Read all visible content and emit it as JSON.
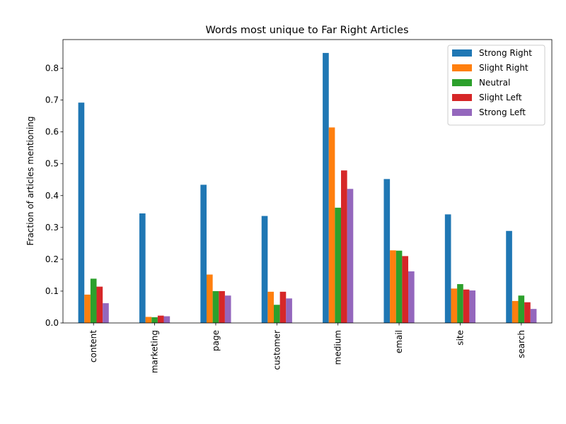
{
  "chart_data": {
    "type": "bar",
    "title": "Words most unique to Far Right Articles",
    "xlabel": "",
    "ylabel": "Fraction of articles mentioning",
    "ylim": [
      0,
      0.89
    ],
    "yticks": [
      0.0,
      0.1,
      0.2,
      0.3,
      0.4,
      0.5,
      0.6,
      0.7,
      0.8
    ],
    "ytick_labels": [
      "0.0",
      "0.1",
      "0.2",
      "0.3",
      "0.4",
      "0.5",
      "0.6",
      "0.7",
      "0.8"
    ],
    "categories": [
      "content",
      "marketing",
      "page",
      "customer",
      "medium",
      "email",
      "site",
      "search"
    ],
    "series": [
      {
        "name": "Strong Right",
        "color": "#1f77b4",
        "values": [
          0.692,
          0.344,
          0.434,
          0.336,
          0.848,
          0.452,
          0.341,
          0.289
        ]
      },
      {
        "name": "Slight Right",
        "color": "#ff7f0e",
        "values": [
          0.089,
          0.019,
          0.152,
          0.098,
          0.614,
          0.228,
          0.108,
          0.069
        ]
      },
      {
        "name": "Neutral",
        "color": "#2ca02c",
        "values": [
          0.139,
          0.018,
          0.1,
          0.057,
          0.362,
          0.227,
          0.122,
          0.086
        ]
      },
      {
        "name": "Slight Left",
        "color": "#d62728",
        "values": [
          0.114,
          0.023,
          0.1,
          0.098,
          0.479,
          0.21,
          0.105,
          0.065
        ]
      },
      {
        "name": "Strong Left",
        "color": "#9467bd",
        "values": [
          0.062,
          0.021,
          0.086,
          0.077,
          0.421,
          0.162,
          0.102,
          0.044
        ]
      }
    ],
    "grid": false,
    "legend_position": "top-right"
  }
}
